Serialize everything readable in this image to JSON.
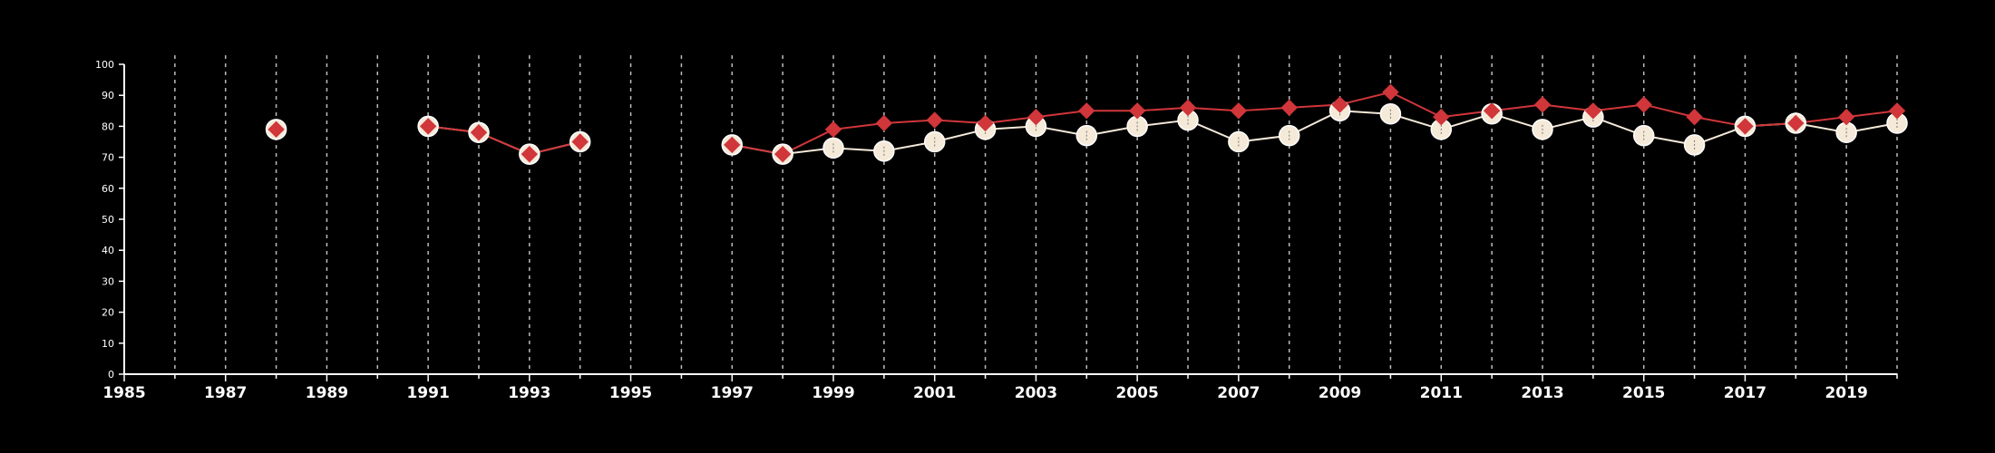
{
  "chart_data": {
    "type": "line",
    "title": "",
    "xlabel": "",
    "ylabel": "",
    "xlim": [
      1985,
      2020
    ],
    "ylim": [
      0,
      100
    ],
    "x_ticks": [
      1985,
      1987,
      1989,
      1991,
      1993,
      1995,
      1997,
      1999,
      2001,
      2003,
      2005,
      2007,
      2009,
      2011,
      2013,
      2015,
      2017,
      2019
    ],
    "y_ticks": [
      0,
      10,
      20,
      30,
      40,
      50,
      60,
      70,
      80,
      90,
      100
    ],
    "grid": "vertical dashed lines at every year",
    "legend": "none",
    "colors": {
      "background": "#000000",
      "series_a": "#d0363a",
      "series_b": "#f5e9d8",
      "marker_outline": "#ffffff"
    },
    "series": [
      {
        "marker": "diamond",
        "color": "#d0363a",
        "points": [
          [
            1988,
            79
          ],
          [
            1991,
            80
          ],
          [
            1992,
            78
          ],
          [
            1993,
            71
          ],
          [
            1994,
            75
          ],
          [
            1997,
            74
          ],
          [
            1998,
            71
          ],
          [
            1999,
            79
          ],
          [
            2000,
            81
          ],
          [
            2001,
            82
          ],
          [
            2002,
            81
          ],
          [
            2003,
            83
          ],
          [
            2004,
            85
          ],
          [
            2005,
            85
          ],
          [
            2006,
            86
          ],
          [
            2007,
            85
          ],
          [
            2008,
            86
          ],
          [
            2009,
            87
          ],
          [
            2010,
            91
          ],
          [
            2011,
            83
          ],
          [
            2012,
            85
          ],
          [
            2013,
            87
          ],
          [
            2014,
            85
          ],
          [
            2015,
            87
          ],
          [
            2016,
            83
          ],
          [
            2017,
            80
          ],
          [
            2018,
            81
          ],
          [
            2019,
            83
          ],
          [
            2020,
            85
          ]
        ]
      },
      {
        "marker": "circle",
        "color": "#f5e9d8",
        "points": [
          [
            1988,
            79
          ],
          [
            1991,
            80
          ],
          [
            1992,
            78
          ],
          [
            1993,
            71
          ],
          [
            1994,
            75
          ],
          [
            1997,
            74
          ],
          [
            1998,
            71
          ],
          [
            1999,
            73
          ],
          [
            2000,
            72
          ],
          [
            2001,
            75
          ],
          [
            2002,
            79
          ],
          [
            2003,
            80
          ],
          [
            2004,
            77
          ],
          [
            2005,
            80
          ],
          [
            2006,
            82
          ],
          [
            2007,
            75
          ],
          [
            2008,
            77
          ],
          [
            2009,
            85
          ],
          [
            2010,
            84
          ],
          [
            2011,
            79
          ],
          [
            2012,
            84
          ],
          [
            2013,
            79
          ],
          [
            2014,
            83
          ],
          [
            2015,
            77
          ],
          [
            2016,
            74
          ],
          [
            2017,
            80
          ],
          [
            2018,
            81
          ],
          [
            2019,
            78
          ],
          [
            2020,
            81
          ]
        ]
      }
    ]
  }
}
